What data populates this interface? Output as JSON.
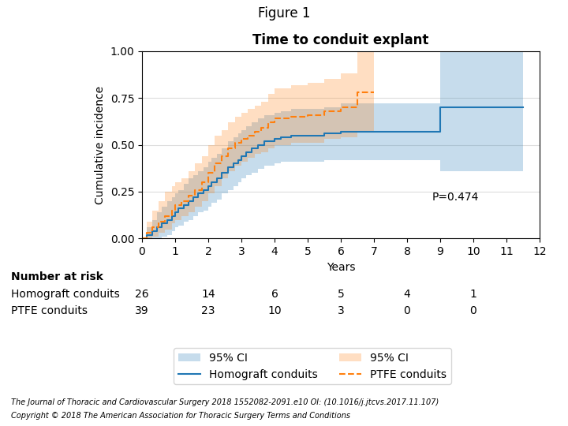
{
  "chart_data": {
    "type": "step",
    "figure_title": "Figure 1",
    "title": "Time to conduit explant",
    "x_label": "Years",
    "y_label": "Cumulative incidence",
    "xlim": [
      0,
      12
    ],
    "ylim": [
      0,
      1.0
    ],
    "xticks": [
      0,
      1,
      2,
      3,
      4,
      5,
      6,
      7,
      8,
      9,
      10,
      11,
      12
    ],
    "yticks": [
      {
        "value": 0.0,
        "label": "0.00"
      },
      {
        "value": 0.25,
        "label": "0.25"
      },
      {
        "value": 0.5,
        "label": "0.50"
      },
      {
        "value": 0.75,
        "label": "0.75"
      },
      {
        "value": 1.0,
        "label": "1.00"
      }
    ],
    "grid": "y",
    "legend": "lower center",
    "annotation": "P=0.474",
    "series": [
      {
        "name": "Homograft conduits",
        "line_style": "solid",
        "ci_label": "95% CI",
        "x": [
          0,
          0.15,
          0.3,
          0.45,
          0.6,
          0.75,
          0.9,
          1.0,
          1.1,
          1.25,
          1.4,
          1.55,
          1.7,
          1.85,
          2.0,
          2.1,
          2.25,
          2.4,
          2.6,
          2.75,
          2.9,
          3.0,
          3.15,
          3.3,
          3.5,
          3.7,
          4.0,
          4.2,
          4.5,
          5.0,
          5.5,
          6.0,
          6.5,
          9.0,
          11.5
        ],
        "values": [
          0,
          0.02,
          0.04,
          0.06,
          0.08,
          0.1,
          0.12,
          0.14,
          0.16,
          0.18,
          0.2,
          0.22,
          0.24,
          0.26,
          0.28,
          0.3,
          0.32,
          0.35,
          0.38,
          0.4,
          0.42,
          0.44,
          0.46,
          0.48,
          0.5,
          0.52,
          0.53,
          0.54,
          0.55,
          0.55,
          0.56,
          0.57,
          0.57,
          0.7,
          0.7
        ],
        "ci_lower": [
          0,
          0.0,
          0.0,
          0.0,
          0.01,
          0.02,
          0.04,
          0.06,
          0.07,
          0.09,
          0.1,
          0.12,
          0.14,
          0.15,
          0.17,
          0.19,
          0.21,
          0.24,
          0.26,
          0.28,
          0.3,
          0.32,
          0.34,
          0.35,
          0.37,
          0.39,
          0.4,
          0.41,
          0.41,
          0.41,
          0.42,
          0.42,
          0.42,
          0.36,
          0.36
        ],
        "ci_upper": [
          0,
          0.06,
          0.1,
          0.14,
          0.17,
          0.2,
          0.22,
          0.24,
          0.26,
          0.29,
          0.32,
          0.34,
          0.36,
          0.38,
          0.41,
          0.43,
          0.45,
          0.48,
          0.52,
          0.54,
          0.56,
          0.58,
          0.6,
          0.62,
          0.64,
          0.66,
          0.67,
          0.68,
          0.69,
          0.69,
          0.7,
          0.72,
          0.72,
          1.0,
          1.0
        ]
      },
      {
        "name": "PTFE conduits",
        "line_style": "dashed",
        "ci_label": "95% CI",
        "x": [
          0,
          0.15,
          0.3,
          0.5,
          0.7,
          0.9,
          1.0,
          1.2,
          1.4,
          1.6,
          1.8,
          2.0,
          2.2,
          2.4,
          2.6,
          2.8,
          3.0,
          3.2,
          3.4,
          3.6,
          3.8,
          4.0,
          4.5,
          5.0,
          5.5,
          6.0,
          6.5,
          7.0
        ],
        "values": [
          0,
          0.03,
          0.06,
          0.09,
          0.12,
          0.15,
          0.18,
          0.2,
          0.23,
          0.26,
          0.3,
          0.35,
          0.4,
          0.44,
          0.48,
          0.51,
          0.53,
          0.55,
          0.57,
          0.59,
          0.62,
          0.64,
          0.65,
          0.66,
          0.68,
          0.7,
          0.78,
          0.78
        ],
        "ci_lower": [
          0,
          0.0,
          0.01,
          0.03,
          0.05,
          0.08,
          0.1,
          0.12,
          0.14,
          0.17,
          0.2,
          0.24,
          0.28,
          0.32,
          0.36,
          0.39,
          0.41,
          0.43,
          0.45,
          0.46,
          0.48,
          0.5,
          0.51,
          0.51,
          0.53,
          0.54,
          0.57,
          0.57
        ],
        "ci_upper": [
          0,
          0.09,
          0.15,
          0.2,
          0.25,
          0.28,
          0.3,
          0.32,
          0.36,
          0.4,
          0.44,
          0.5,
          0.55,
          0.58,
          0.62,
          0.65,
          0.67,
          0.69,
          0.71,
          0.73,
          0.77,
          0.8,
          0.82,
          0.83,
          0.85,
          0.88,
          1.0,
          1.0
        ]
      }
    ],
    "risk_table": {
      "title": "Number at risk",
      "x": [
        0,
        2,
        4,
        6,
        8,
        10
      ],
      "rows": [
        {
          "name": "Homograft conduits",
          "values": [
            26,
            14,
            6,
            5,
            4,
            1
          ]
        },
        {
          "name": "PTFE conduits",
          "values": [
            39,
            23,
            10,
            3,
            0,
            0
          ]
        }
      ]
    },
    "footnotes": [
      "The Journal of Thoracic and Cardiovascular Surgery 2018 1552082-2091.e10 OI: (10.1016/j.jtcvs.2017.11.107)",
      "Copyright © 2018 The American Association for Thoracic Surgery Terms and Conditions"
    ]
  }
}
